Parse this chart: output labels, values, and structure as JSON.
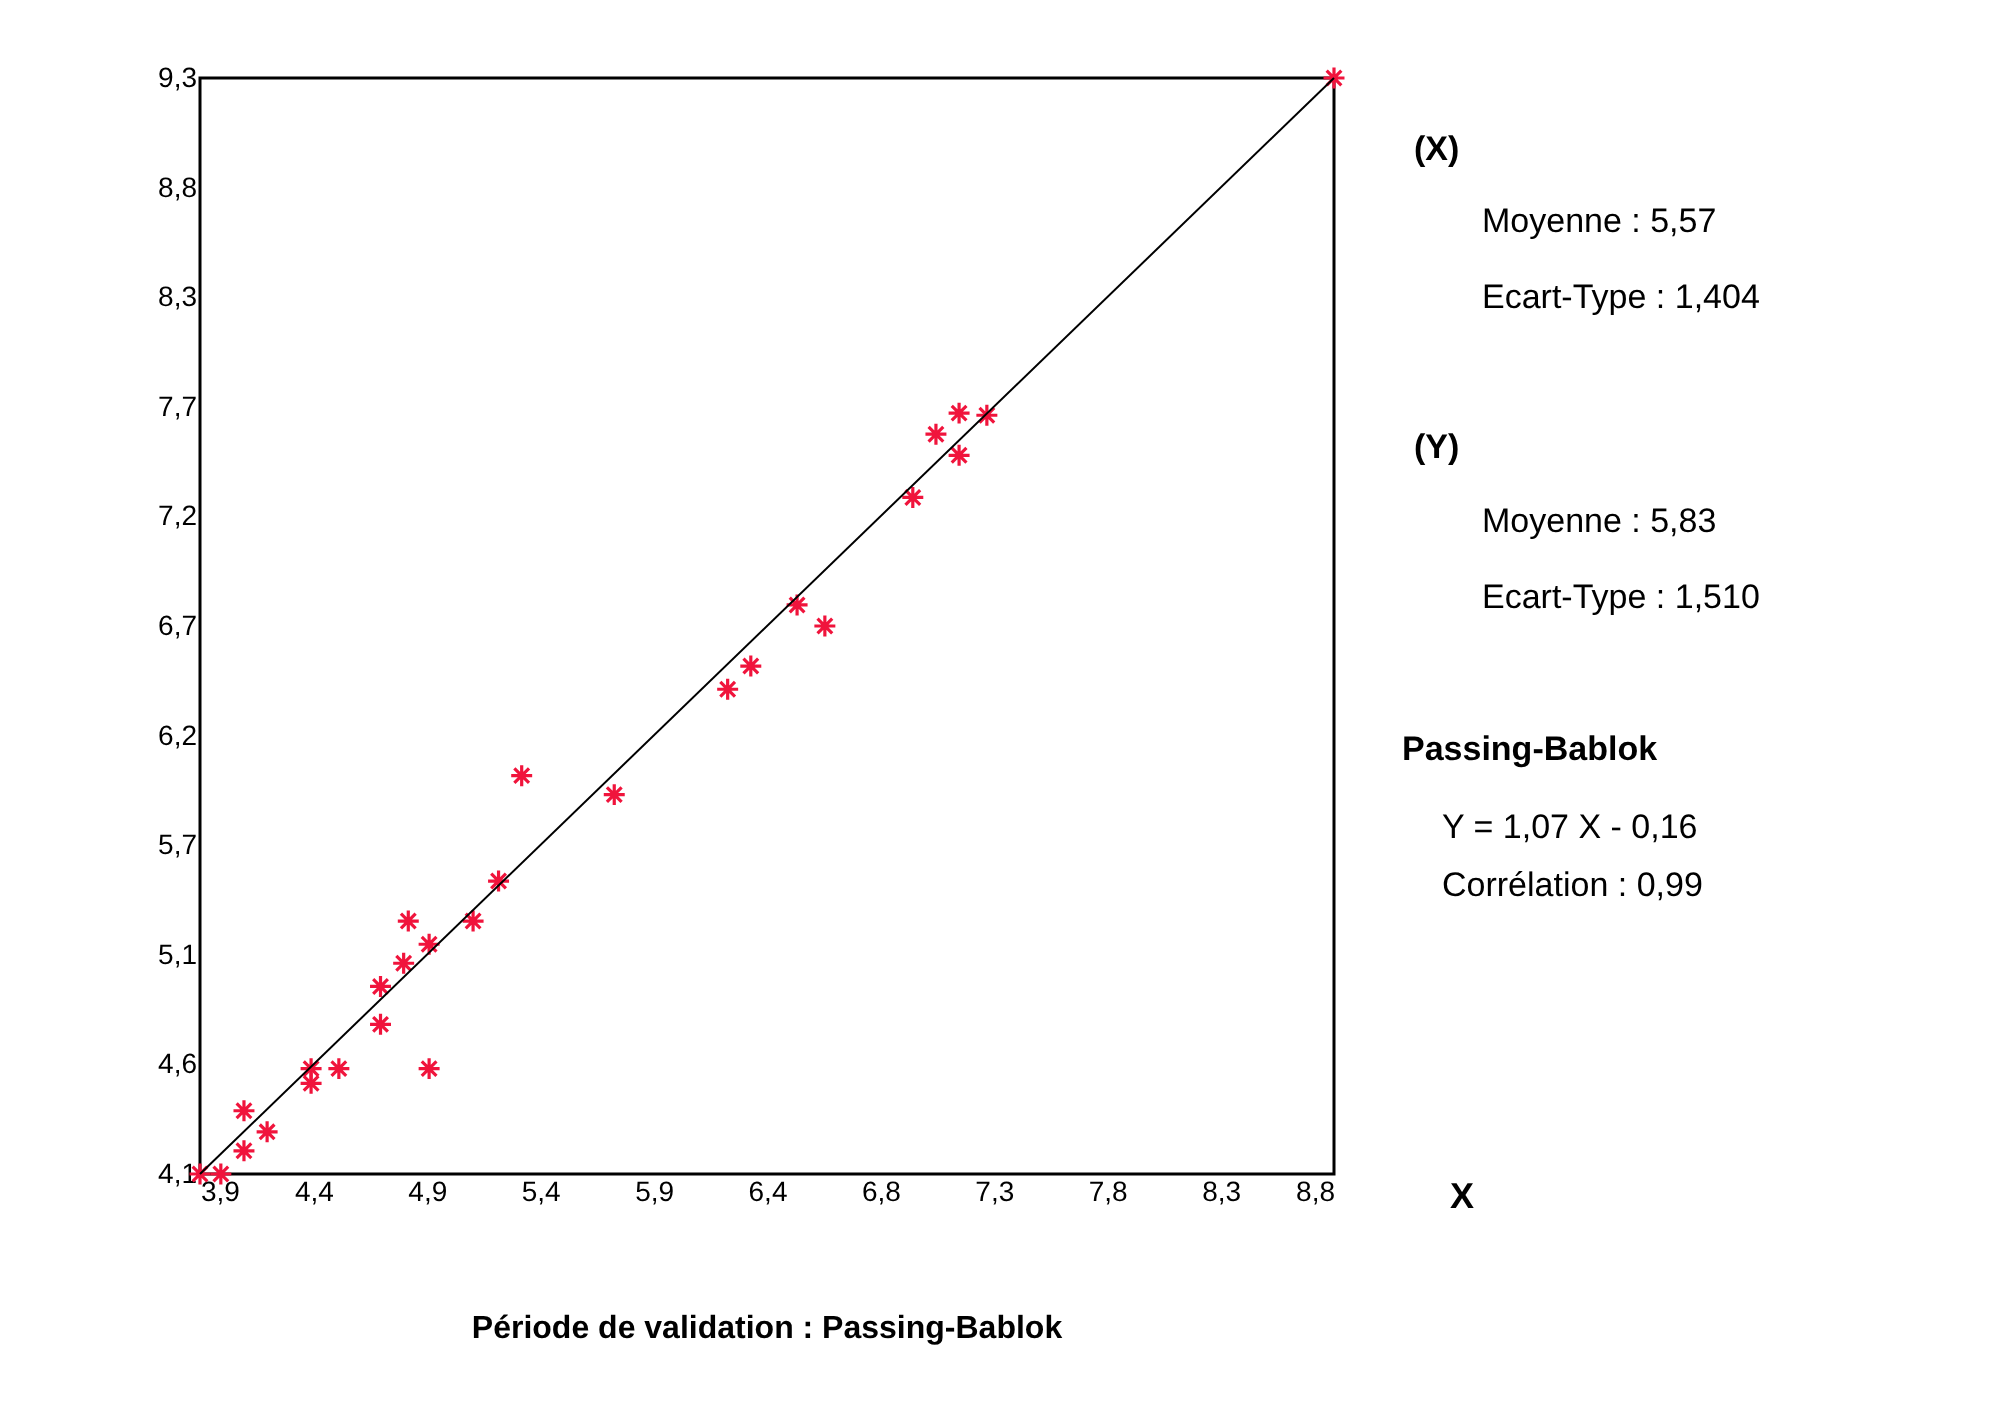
{
  "chart_data": {
    "type": "scatter",
    "title": "Période de validation : Passing-Bablok",
    "xlabel": "X",
    "x": [
      3.9,
      3.99,
      4.09,
      4.09,
      4.19,
      4.38,
      4.38,
      4.5,
      4.68,
      4.68,
      4.78,
      4.8,
      4.89,
      4.89,
      5.08,
      5.19,
      5.29,
      5.69,
      6.18,
      6.28,
      6.48,
      6.6,
      6.98,
      7.08,
      7.18,
      7.18,
      7.3,
      8.8
    ],
    "series": [
      {
        "color": "#f0143c",
        "marker": "cross",
        "values": [
          4.1,
          4.1,
          4.21,
          4.4,
          4.3,
          4.6,
          4.53,
          4.6,
          4.81,
          4.99,
          5.1,
          5.3,
          5.19,
          4.6,
          5.3,
          5.49,
          5.99,
          5.9,
          6.4,
          6.51,
          6.8,
          6.7,
          7.31,
          7.61,
          7.51,
          7.71,
          7.7,
          9.3
        ]
      },
      {
        "type": "line",
        "color": "#000000",
        "line_style": "solid",
        "marker": "none",
        "x": [
          3.9,
          8.8
        ],
        "values": [
          4.1,
          9.3
        ]
      }
    ],
    "xlim": [
      3.9,
      8.8
    ],
    "ylim": [
      4.1,
      9.3
    ],
    "xticks": [
      {
        "value": 3.9,
        "label": "3,9"
      },
      {
        "value": 4.39,
        "label": "4,4"
      },
      {
        "value": 4.88,
        "label": "4,9"
      },
      {
        "value": 5.37,
        "label": "5,4"
      },
      {
        "value": 5.86,
        "label": "5,9"
      },
      {
        "value": 6.35,
        "label": "6,4"
      },
      {
        "value": 6.84,
        "label": "6,8"
      },
      {
        "value": 7.33,
        "label": "7,3"
      },
      {
        "value": 7.82,
        "label": "7,8"
      },
      {
        "value": 8.31,
        "label": "8,3"
      },
      {
        "value": 8.8,
        "label": "8,8"
      }
    ],
    "yticks": [
      {
        "value": 4.1,
        "label": "4,1"
      },
      {
        "value": 4.62,
        "label": "4,6"
      },
      {
        "value": 5.14,
        "label": "5,1"
      },
      {
        "value": 5.66,
        "label": "5,7"
      },
      {
        "value": 6.18,
        "label": "6,2"
      },
      {
        "value": 6.7,
        "label": "6,7"
      },
      {
        "value": 7.22,
        "label": "7,2"
      },
      {
        "value": 7.74,
        "label": "7,7"
      },
      {
        "value": 8.26,
        "label": "8,3"
      },
      {
        "value": 8.78,
        "label": "8,8"
      },
      {
        "value": 9.3,
        "label": "9,3"
      }
    ],
    "grid": false,
    "annotations": [
      "(X)",
      "Moyenne :    5,57",
      "Ecart-Type : 1,404",
      "(Y)",
      "Moyenne :    5,83",
      "Ecart-Type : 1,510",
      "Passing-Bablok",
      "Y = 1,07 X - 0,16",
      "Corrélation : 0,99"
    ]
  }
}
